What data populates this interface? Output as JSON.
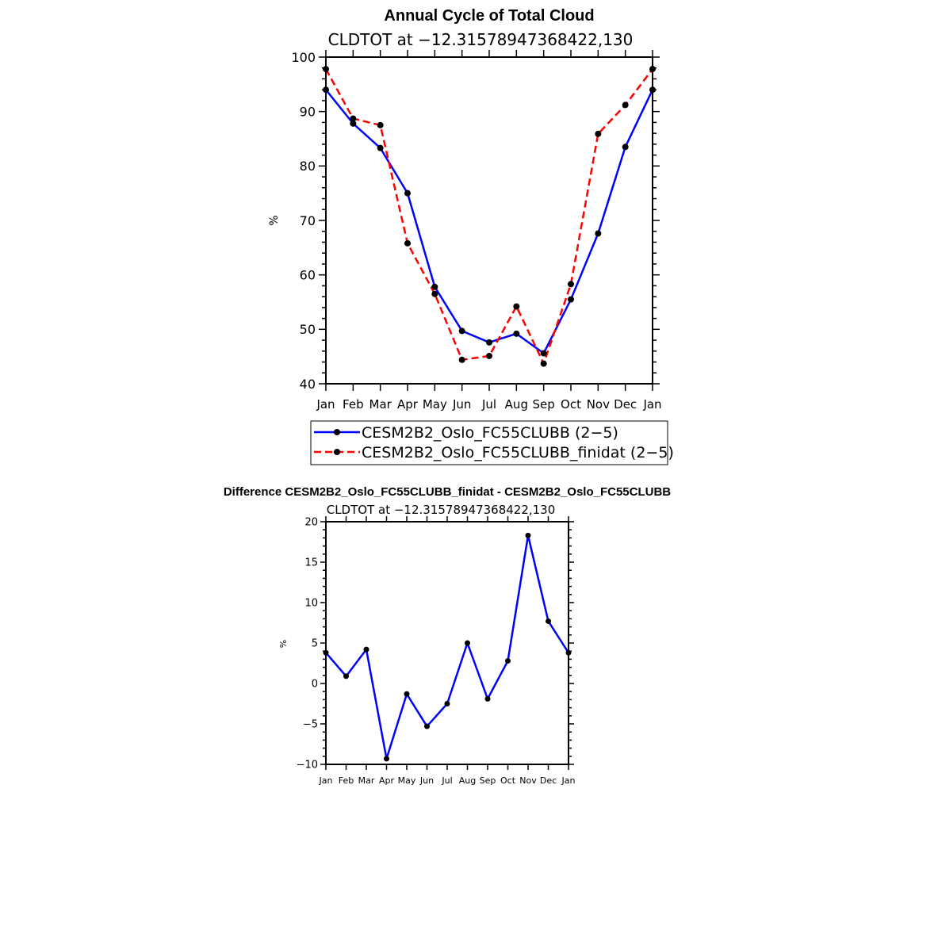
{
  "chart_data": [
    {
      "type": "line",
      "title": "Annual Cycle of Total Cloud",
      "subtitle": "CLDTOT at −12.31578947368422,130",
      "ylabel": "%",
      "ylim": [
        40,
        100
      ],
      "yticks": [
        40,
        50,
        60,
        70,
        80,
        90,
        100
      ],
      "ytick_labels": [
        "40",
        "50",
        "60",
        "70",
        "80",
        "90",
        "100"
      ],
      "categories": [
        "Jan",
        "Feb",
        "Mar",
        "Apr",
        "May",
        "Jun",
        "Jul",
        "Aug",
        "Sep",
        "Oct",
        "Nov",
        "Dec",
        "Jan"
      ],
      "series": [
        {
          "name": "CESM2B2_Oslo_FC55CLUBB (2−5)",
          "color": "#0000ff",
          "dash": "solid",
          "values": [
            94.0,
            87.8,
            83.3,
            75.0,
            57.8,
            49.7,
            47.6,
            49.2,
            45.6,
            55.5,
            67.6,
            83.5,
            94.0
          ]
        },
        {
          "name": "CESM2B2_Oslo_FC55CLUBB_finidat (2−5)",
          "color": "#ff0000",
          "dash": "dashed",
          "values": [
            97.8,
            88.7,
            87.5,
            65.8,
            56.5,
            44.4,
            45.1,
            54.2,
            43.7,
            58.3,
            85.9,
            91.2,
            97.8
          ]
        }
      ]
    },
    {
      "type": "line",
      "title": "Difference CESM2B2_Oslo_FC55CLUBB_finidat - CESM2B2_Oslo_FC55CLUBB",
      "subtitle": "CLDTOT at −12.31578947368422,130",
      "ylabel": "%",
      "ylim": [
        -10,
        20
      ],
      "yticks": [
        -10,
        -5,
        0,
        5,
        10,
        15,
        20
      ],
      "ytick_labels": [
        "−10",
        "−5",
        "0",
        "5",
        "10",
        "15",
        "20"
      ],
      "categories": [
        "Jan",
        "Feb",
        "Mar",
        "Apr",
        "May",
        "Jun",
        "Jul",
        "Aug",
        "Sep",
        "Oct",
        "Nov",
        "Dec",
        "Jan"
      ],
      "series": [
        {
          "name": "difference",
          "color": "#0000ff",
          "dash": "solid",
          "values": [
            3.8,
            0.9,
            4.2,
            -9.3,
            -1.3,
            -5.3,
            -2.5,
            5.0,
            -1.9,
            2.8,
            18.3,
            7.7,
            3.8
          ]
        }
      ]
    }
  ]
}
